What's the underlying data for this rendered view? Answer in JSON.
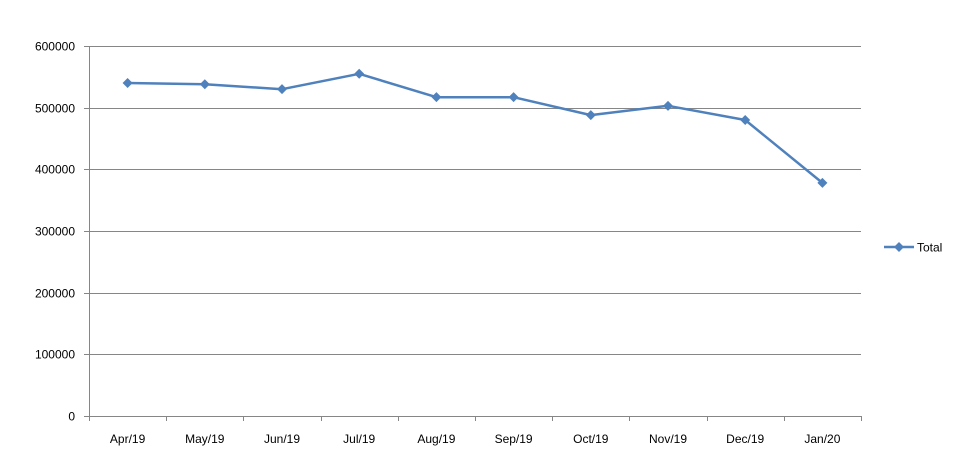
{
  "chart_data": {
    "type": "line",
    "categories": [
      "Apr/19",
      "May/19",
      "Jun/19",
      "Jul/19",
      "Aug/19",
      "Sep/19",
      "Oct/19",
      "Nov/19",
      "Dec/19",
      "Jan/20"
    ],
    "series": [
      {
        "name": "Total",
        "values": [
          540000,
          538000,
          530000,
          555000,
          517000,
          517000,
          488000,
          503000,
          480000,
          378000
        ],
        "color": "#4F81BD",
        "marker": "diamond"
      }
    ],
    "ylim": [
      0,
      600000
    ],
    "yticks": [
      0,
      100000,
      200000,
      300000,
      400000,
      500000,
      600000
    ],
    "ytick_labels": [
      "0",
      "100000",
      "200000",
      "300000",
      "400000",
      "500000",
      "600000"
    ],
    "grid": true,
    "legend": "right",
    "title": "",
    "xlabel": "",
    "ylabel": ""
  }
}
